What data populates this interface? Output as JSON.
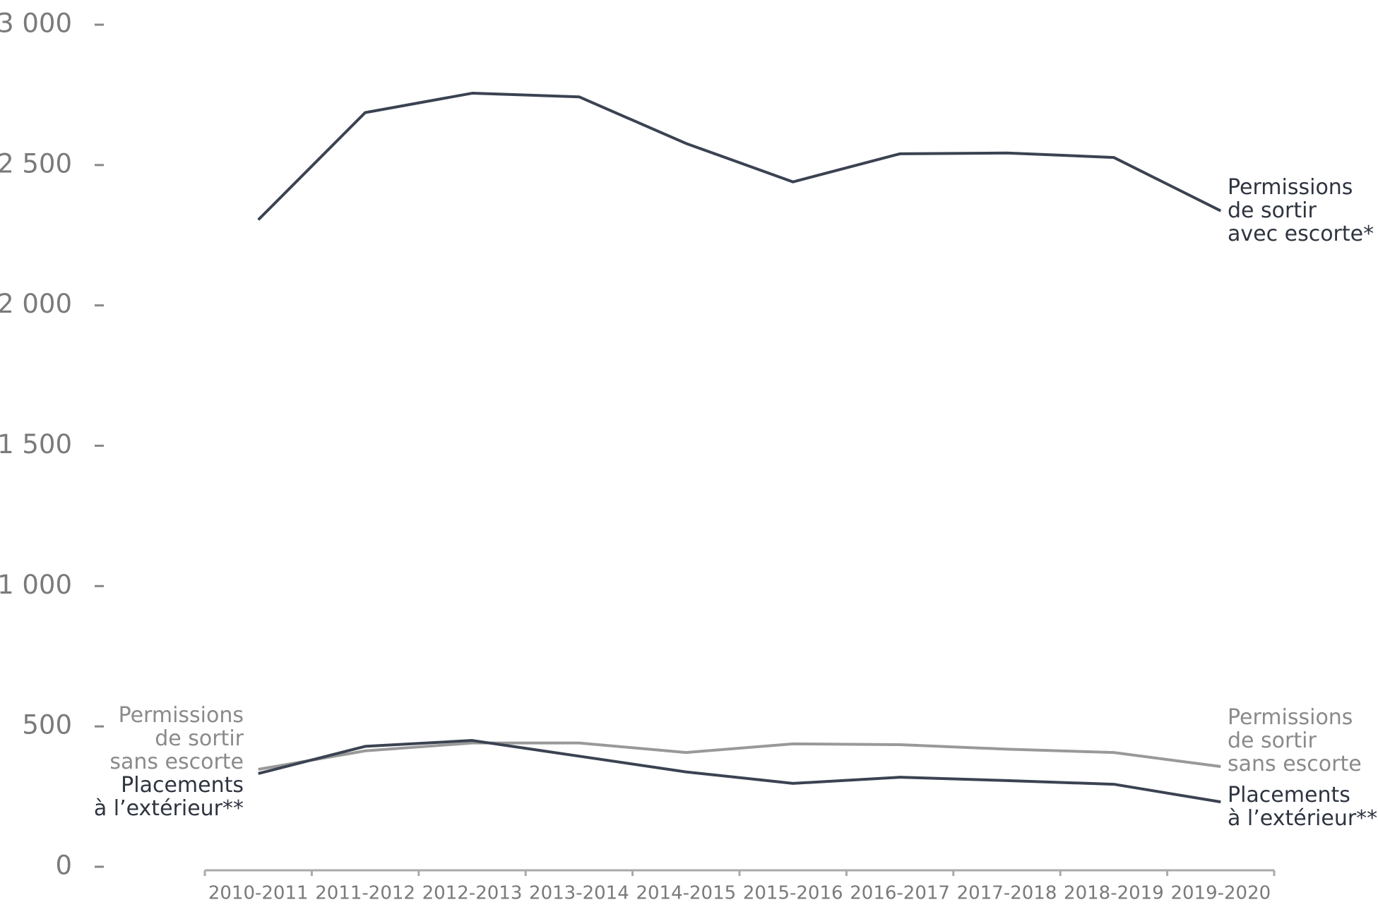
{
  "chart_data": {
    "type": "line",
    "categories": [
      "2010-2011",
      "2011-2012",
      "2012-2013",
      "2013-2014",
      "2014-2015",
      "2015-2016",
      "2016-2017",
      "2017-2018",
      "2018-2019",
      "2019-2020"
    ],
    "series": [
      {
        "name": "Permissions\nde sortir\navec escorte*",
        "color": "#3b4252",
        "values": [
          2305,
          2687,
          2756,
          2743,
          2577,
          2440,
          2540,
          2543,
          2527,
          2337
        ]
      },
      {
        "name": "Permissions\nde sortir\nsans escorte",
        "color": "#999999",
        "values": [
          347,
          413,
          441,
          441,
          407,
          438,
          435,
          419,
          407,
          357
        ]
      },
      {
        "name": "Placements\nà l’extérieur**",
        "color": "#3b4252",
        "values": [
          332,
          429,
          450,
          394,
          338,
          297,
          319,
          307,
          294,
          231
        ]
      }
    ],
    "ylim": [
      0,
      3000
    ],
    "yticks": [
      0,
      500,
      {
        "value": 1000,
        "label": "1 000"
      },
      {
        "value": 1500,
        "label": "1 500"
      },
      {
        "value": 2000,
        "label": "2 000"
      },
      {
        "value": 2500,
        "label": "2 500"
      },
      {
        "value": 3000,
        "label": "3 000"
      }
    ]
  }
}
